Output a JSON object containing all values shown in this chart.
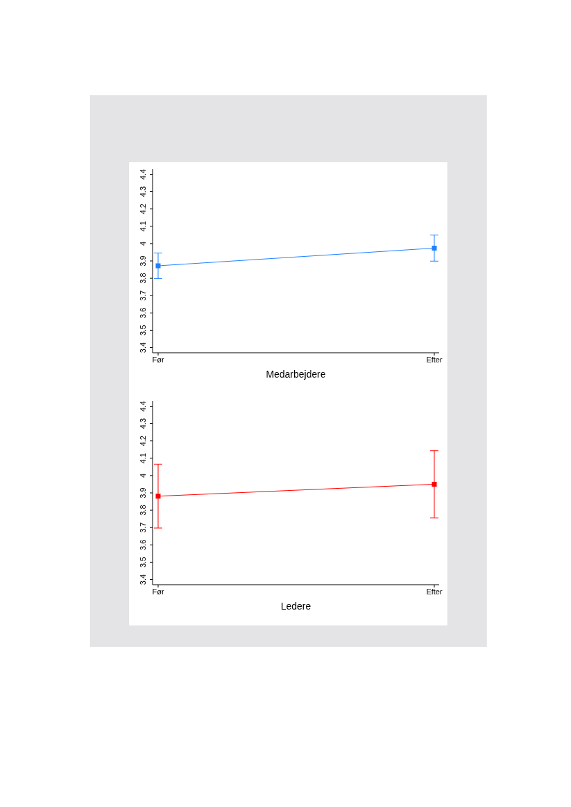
{
  "chart_data": [
    {
      "type": "line",
      "xlabel": "Medarbejdere",
      "categories": [
        "Før",
        "Efter"
      ],
      "color": "#1e82ff",
      "values": [
        3.872,
        3.974
      ],
      "errors": [
        [
          3.798,
          3.946
        ],
        [
          3.899,
          4.05
        ]
      ],
      "ylim": [
        3.37,
        4.43
      ],
      "yticks": [
        3.4,
        3.5,
        3.6,
        3.7,
        3.8,
        3.9,
        4,
        4.1,
        4.2,
        4.3,
        4.4
      ],
      "marker": "square",
      "grid": false,
      "legend": false
    },
    {
      "type": "line",
      "xlabel": "Ledere",
      "categories": [
        "Før",
        "Efter"
      ],
      "color": "#ff0000",
      "values": [
        3.881,
        3.95
      ],
      "errors": [
        [
          3.697,
          4.066
        ],
        [
          3.756,
          4.144
        ]
      ],
      "ylim": [
        3.37,
        4.43
      ],
      "yticks": [
        3.4,
        3.5,
        3.6,
        3.7,
        3.8,
        3.9,
        4,
        4.1,
        4.2,
        4.3,
        4.4
      ],
      "marker": "square",
      "grid": false,
      "legend": false
    }
  ]
}
